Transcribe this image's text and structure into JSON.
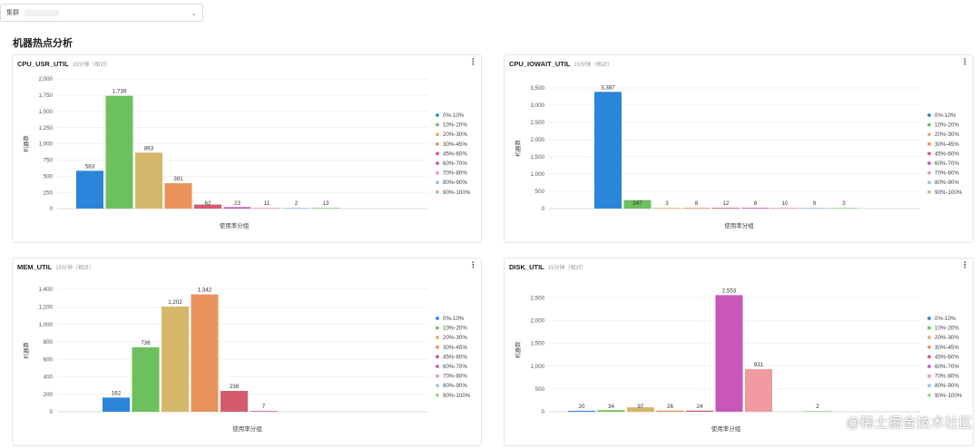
{
  "filter": {
    "label": "集群",
    "chevron_icon": "chevron-down-icon"
  },
  "section_title": "机器热点分析",
  "legend_labels": [
    "0%-10%",
    "10%-20%",
    "20%-30%",
    "30%-45%",
    "45%-60%",
    "60%-70%",
    "70%-80%",
    "80%-90%",
    "90%-100%"
  ],
  "colors": [
    "#2b85d9",
    "#6cc05d",
    "#d5b76c",
    "#e8935c",
    "#d55a6b",
    "#c857b9",
    "#ef9aa0",
    "#9dc3e6",
    "#93d889"
  ],
  "panels": [
    {
      "title": "CPU_USR_UTIL",
      "subtitle": "15分钟（相对）"
    },
    {
      "title": "CPU_IOWAIT_UTIL",
      "subtitle": "15分钟（相对）"
    },
    {
      "title": "MEM_UTIL",
      "subtitle": "15分钟（相对）"
    },
    {
      "title": "DISK_UTIL",
      "subtitle": "15分钟（相对）"
    }
  ],
  "watermark": "@稀土掘金技术社区",
  "chart_data": [
    {
      "type": "bar",
      "title": "CPU_USR_UTIL",
      "xlabel": "使用率分组",
      "ylabel": "机器数",
      "categories": [
        "0%-10%",
        "10%-20%",
        "20%-30%",
        "30%-45%",
        "45%-60%",
        "60%-70%",
        "70%-80%",
        "80%-90%",
        "90%-100%"
      ],
      "values": [
        583,
        1739,
        863,
        391,
        62,
        23,
        11,
        2,
        13
      ],
      "yticks": [
        0,
        250,
        500,
        750,
        1000,
        1250,
        1500,
        1750,
        2000
      ],
      "ytick_labels": [
        "0",
        "250",
        "500",
        "750",
        "1,000",
        "1,250",
        "1,500",
        "1,750",
        "2,000"
      ],
      "ylim": [
        0,
        2000
      ],
      "legend": "right"
    },
    {
      "type": "bar",
      "title": "CPU_IOWAIT_UTIL",
      "xlabel": "使用率分组",
      "ylabel": "机器数",
      "categories": [
        "0%-10%",
        "10%-20%",
        "20%-30%",
        "30%-45%",
        "45%-60%",
        "60%-70%",
        "70%-80%",
        "80%-90%",
        "90%-100%"
      ],
      "values": [
        3387,
        247,
        3,
        8,
        12,
        8,
        10,
        9,
        3
      ],
      "yticks": [
        0,
        500,
        1000,
        1500,
        2000,
        2500,
        3000,
        3500
      ],
      "ytick_labels": [
        "0",
        "500",
        "1,000",
        "1,500",
        "2,000",
        "2,500",
        "3,000",
        "3,500"
      ],
      "ylim": [
        0,
        3500
      ],
      "legend": "right"
    },
    {
      "type": "bar",
      "title": "MEM_UTIL",
      "xlabel": "使用率分组",
      "ylabel": "机器数",
      "categories": [
        "0%-10%",
        "10%-20%",
        "20%-30%",
        "30%-45%",
        "45%-60%",
        "60%-70%",
        "70%-80%",
        "80%-90%",
        "90%-100%"
      ],
      "values": [
        162,
        736,
        1202,
        1342,
        238,
        7,
        null,
        null,
        null
      ],
      "yticks": [
        0,
        200,
        400,
        600,
        800,
        1000,
        1200,
        1400
      ],
      "ytick_labels": [
        "0",
        "200",
        "400",
        "600",
        "800",
        "1,000",
        "1,200",
        "1,400"
      ],
      "ylim": [
        0,
        1400
      ],
      "legend": "right"
    },
    {
      "type": "bar",
      "title": "DISK_UTIL",
      "xlabel": "使用率分组",
      "ylabel": "机器数",
      "categories": [
        "0%-10%",
        "10%-20%",
        "20%-30%",
        "30%-45%",
        "45%-60%",
        "60%-70%",
        "70%-80%",
        "80%-90%",
        "90%-100%"
      ],
      "values": [
        20,
        34,
        97,
        26,
        24,
        2553,
        931,
        null,
        2
      ],
      "value_labels": [
        "20",
        "34",
        "97",
        "26",
        "24",
        "2,553",
        "931",
        "",
        "2"
      ],
      "yticks": [
        0,
        500,
        1000,
        1500,
        2000,
        2500
      ],
      "ytick_labels": [
        "0",
        "500",
        "1,000",
        "1,500",
        "2,000",
        "2,500"
      ],
      "ylim": [
        0,
        2700
      ],
      "legend": "right"
    }
  ]
}
